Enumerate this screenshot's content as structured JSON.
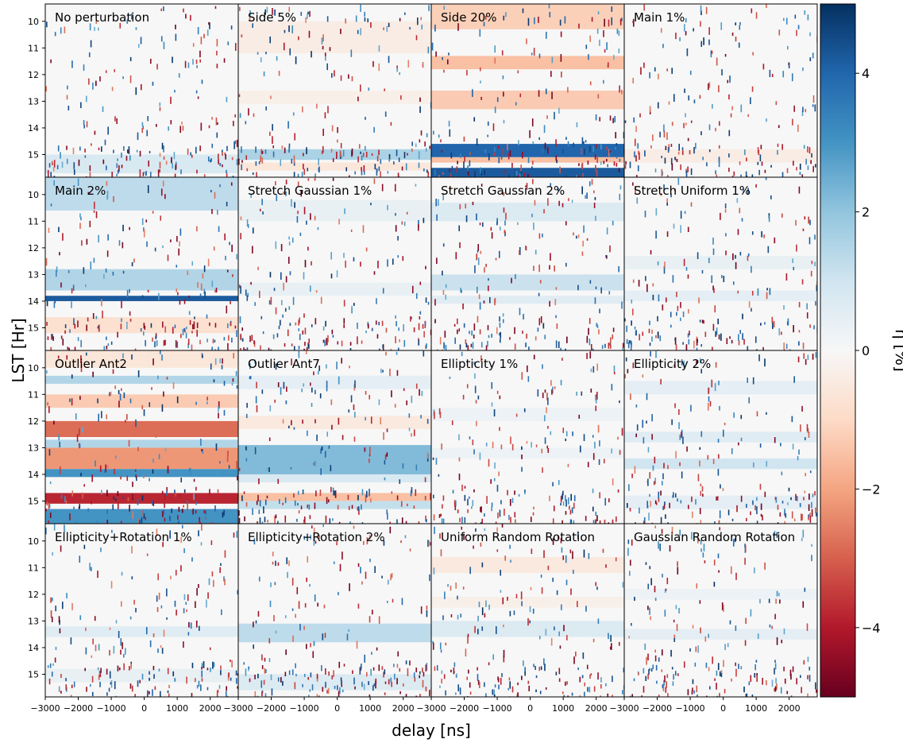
{
  "chart_data": {
    "type": "heatmap",
    "layout": "4x4 grid of panels sharing axes",
    "xlabel": "delay [ns]",
    "ylabel": "LST [Hr]",
    "x_ticks": [
      -3000,
      -2000,
      -1000,
      0,
      1000,
      2000
    ],
    "x_tick_labels": [
      "−3000",
      "−2000",
      "−1000",
      "0",
      "1000",
      "2000"
    ],
    "y_ticks": [
      10,
      11,
      12,
      13,
      14,
      15
    ],
    "y_tick_labels": [
      "10",
      "11",
      "12",
      "13",
      "14",
      "15"
    ],
    "xlim": [
      -3000,
      2850
    ],
    "ylim": [
      15.85,
      9.35
    ],
    "colorbar": {
      "label": "η [%]",
      "range": [
        -5,
        5
      ],
      "ticks": [
        4,
        2,
        0,
        -2,
        -4
      ],
      "tick_labels": [
        "4",
        "2",
        "0",
        "−2",
        "−4"
      ],
      "colormap": "RdBu (red = negative, blue = positive)"
    },
    "panels": [
      {
        "title": "No perturbation",
        "bands": [
          [
            15.0,
            15.7,
            0.8
          ]
        ]
      },
      {
        "title": "Side 5%",
        "bands": [
          [
            10.0,
            11.2,
            -0.4
          ],
          [
            12.6,
            13.1,
            -0.3
          ],
          [
            14.8,
            15.2,
            1.6
          ],
          [
            15.3,
            15.6,
            -0.6
          ]
        ]
      },
      {
        "title": "Side 20%",
        "bands": [
          [
            9.35,
            10.3,
            -1.2
          ],
          [
            11.3,
            11.8,
            -1.5
          ],
          [
            12.6,
            13.3,
            -1.3
          ],
          [
            14.6,
            15.1,
            4.0
          ],
          [
            15.1,
            15.3,
            -1.5
          ],
          [
            15.5,
            15.85,
            4.2
          ]
        ]
      },
      {
        "title": "Main 1%",
        "bands": [
          [
            14.8,
            15.3,
            -0.4
          ]
        ]
      },
      {
        "title": "Main 2%",
        "bands": [
          [
            9.35,
            10.6,
            1.3
          ],
          [
            12.8,
            13.6,
            1.5
          ],
          [
            13.8,
            14.0,
            4.2
          ],
          [
            14.6,
            15.2,
            -0.8
          ]
        ]
      },
      {
        "title": "Stretch Gaussian 1%",
        "bands": [
          [
            10.2,
            11.0,
            0.4
          ],
          [
            13.3,
            13.8,
            0.4
          ]
        ]
      },
      {
        "title": "Stretch Gaussian 2%",
        "bands": [
          [
            10.3,
            11.0,
            0.7
          ],
          [
            13.0,
            13.6,
            1.1
          ],
          [
            13.8,
            14.1,
            0.6
          ]
        ]
      },
      {
        "title": "Stretch Uniform 1%",
        "bands": [
          [
            12.3,
            12.8,
            0.4
          ],
          [
            13.6,
            14.0,
            0.5
          ]
        ]
      },
      {
        "title": "Outlier Ant2",
        "bands": [
          [
            9.35,
            10.0,
            -0.6
          ],
          [
            10.3,
            10.6,
            1.5
          ],
          [
            11.0,
            11.5,
            -1.3
          ],
          [
            12.0,
            12.6,
            -2.8
          ],
          [
            12.7,
            13.0,
            1.5
          ],
          [
            13.0,
            13.8,
            -2.2
          ],
          [
            13.8,
            14.1,
            3.0
          ],
          [
            14.7,
            15.1,
            -3.8
          ],
          [
            15.3,
            15.85,
            3.0
          ]
        ]
      },
      {
        "title": "Outlier Ant7",
        "bands": [
          [
            10.3,
            10.8,
            0.5
          ],
          [
            11.8,
            12.3,
            -0.5
          ],
          [
            12.9,
            14.0,
            2.2
          ],
          [
            14.0,
            14.3,
            0.8
          ],
          [
            14.7,
            15.0,
            -1.5
          ],
          [
            15.0,
            15.3,
            1.2
          ]
        ]
      },
      {
        "title": "Ellipticity 1%",
        "bands": [
          [
            11.5,
            12.0,
            0.3
          ],
          [
            13.0,
            13.4,
            0.3
          ]
        ]
      },
      {
        "title": "Ellipticity 2%",
        "bands": [
          [
            10.5,
            11.0,
            0.5
          ],
          [
            12.4,
            12.8,
            0.6
          ],
          [
            13.4,
            13.8,
            1.0
          ],
          [
            14.8,
            15.3,
            0.5
          ]
        ]
      },
      {
        "title": "Ellipticity+Rotation 1%",
        "bands": [
          [
            13.2,
            13.6,
            0.6
          ],
          [
            14.8,
            15.3,
            0.4
          ]
        ]
      },
      {
        "title": "Ellipticity+Rotation 2%",
        "bands": [
          [
            13.1,
            13.8,
            1.3
          ],
          [
            15.0,
            15.6,
            0.7
          ]
        ]
      },
      {
        "title": "Uniform Random Rotation",
        "bands": [
          [
            10.6,
            11.2,
            -0.5
          ],
          [
            12.1,
            12.5,
            -0.3
          ],
          [
            13.0,
            13.6,
            0.7
          ]
        ]
      },
      {
        "title": "Gaussian Random Rotation",
        "bands": [
          [
            11.8,
            12.2,
            0.3
          ],
          [
            13.3,
            13.7,
            0.5
          ]
        ]
      }
    ]
  }
}
